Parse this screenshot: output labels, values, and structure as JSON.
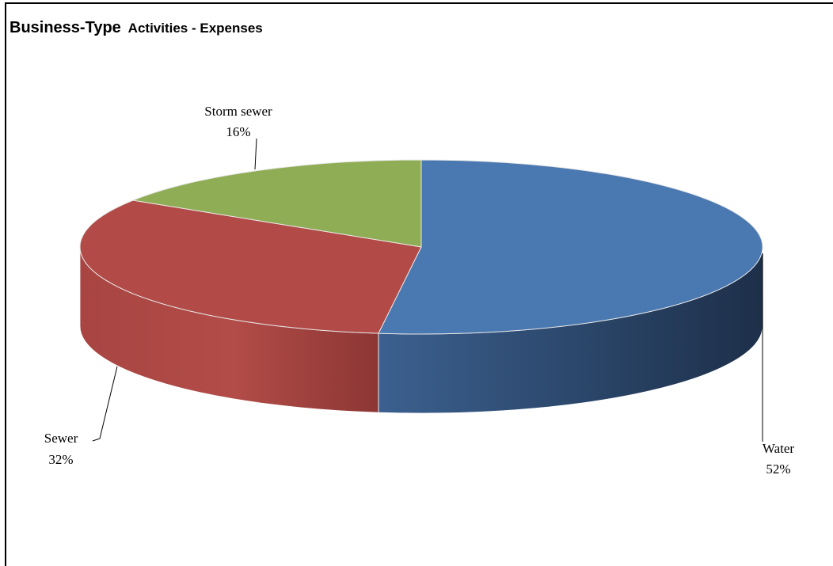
{
  "chart_data": {
    "type": "pie",
    "style": "3d",
    "title_part1": "Business-Type",
    "title_part2": "Activities - Expenses",
    "categories": [
      "Water",
      "Sewer",
      "Storm sewer"
    ],
    "values": [
      52,
      32,
      16
    ],
    "value_labels": [
      "52%",
      "32%",
      "16%"
    ],
    "colors": [
      "#4a78b0",
      "#b24b47",
      "#8fad54"
    ],
    "side_colors": [
      "#2d4c73",
      "#93383a",
      "#6e8a3e"
    ],
    "legend": "none"
  }
}
